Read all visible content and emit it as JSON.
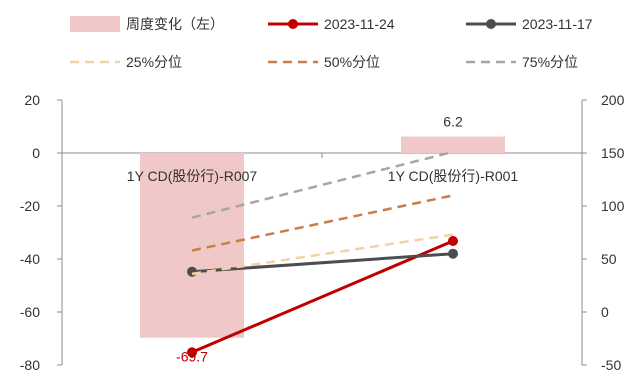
{
  "chart_data": {
    "type": "bar",
    "categories": [
      "1Y CD(股份行)-R007",
      "1Y CD(股份行)-R001"
    ],
    "series": [
      {
        "name": "周度变化（左）",
        "kind": "bar",
        "axis": "left",
        "color": "#f0c8c8",
        "values": [
          -69.7,
          6.2
        ]
      },
      {
        "name": "2023-11-24",
        "kind": "line-marker",
        "axis": "right",
        "color": "#c00000",
        "values": [
          -38,
          67
        ]
      },
      {
        "name": "2023-11-17",
        "kind": "line-marker",
        "axis": "right",
        "color": "#4d4d4d",
        "values": [
          38,
          55
        ]
      },
      {
        "name": "25%分位",
        "kind": "dashed",
        "axis": "right",
        "color": "#f2d1a8",
        "values": [
          36,
          73
        ]
      },
      {
        "name": "50%分位",
        "kind": "dashed",
        "axis": "right",
        "color": "#c87d4a",
        "values": [
          58,
          110
        ]
      },
      {
        "name": "75%分位",
        "kind": "dashed",
        "axis": "right",
        "color": "#a6a6a6",
        "values": [
          89,
          151
        ]
      }
    ],
    "y_left": {
      "min": -80,
      "max": 20,
      "ticks": [
        20,
        0,
        -20,
        -40,
        -60,
        -80
      ]
    },
    "y_right": {
      "min": -50,
      "max": 200,
      "ticks": [
        200,
        150,
        100,
        50,
        0,
        -50
      ]
    },
    "data_labels": [
      "-69.7",
      "6.2"
    ],
    "legend_position": "top"
  }
}
